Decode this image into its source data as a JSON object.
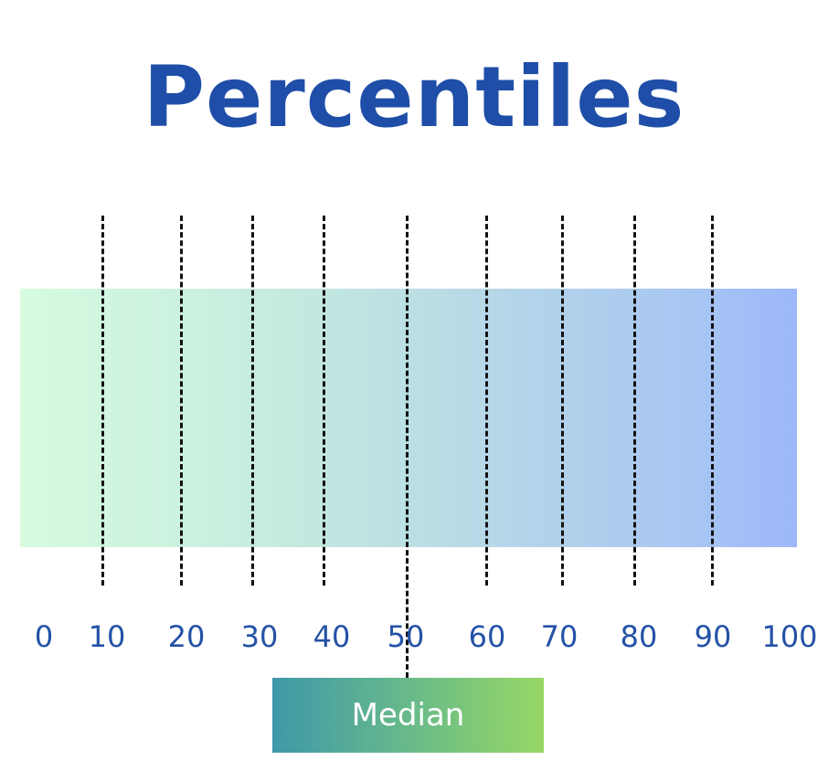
{
  "title": "Percentiles",
  "band": {
    "gradient_start": "#d7fbdf",
    "gradient_end": "#9cb8fa"
  },
  "ticks": [
    "0",
    "10",
    "20",
    "30",
    "40",
    "50",
    "60",
    "70",
    "80",
    "90",
    "100"
  ],
  "median": {
    "label": "Median",
    "percentile": 50,
    "gradient_start": "#3f98a9",
    "gradient_end": "#98d765"
  },
  "colors": {
    "title": "#1f4ea8",
    "ticks": "#2452a6",
    "dividers": "#111111"
  }
}
